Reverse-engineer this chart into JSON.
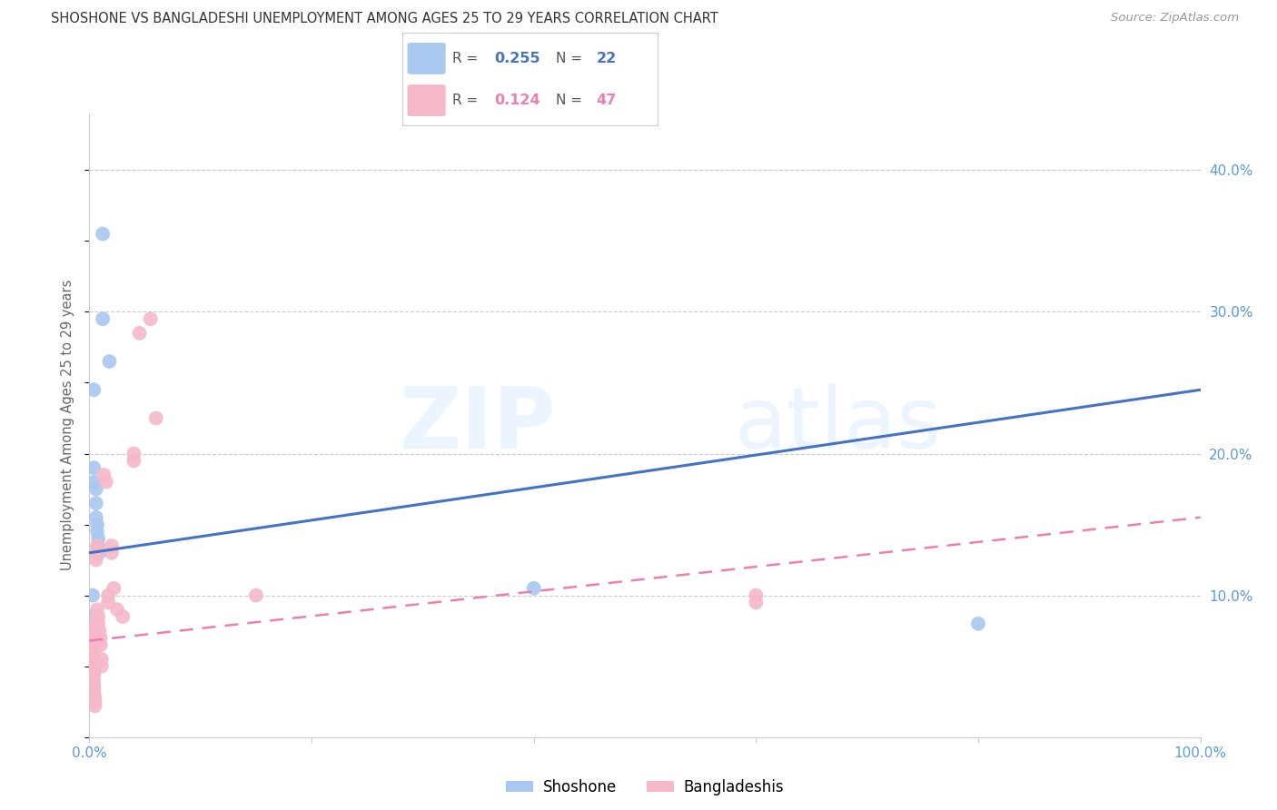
{
  "title": "SHOSHONE VS BANGLADESHI UNEMPLOYMENT AMONG AGES 25 TO 29 YEARS CORRELATION CHART",
  "source": "Source: ZipAtlas.com",
  "ylabel": "Unemployment Among Ages 25 to 29 years",
  "xlim": [
    0,
    1.0
  ],
  "ylim": [
    0,
    0.44
  ],
  "shoshone_color": "#a8c8f0",
  "bangladeshi_color": "#f5b8c8",
  "trendline_blue": "#4472c4",
  "trendline_pink": "#ed7eb0",
  "blue_trend_x": [
    0.0,
    1.0
  ],
  "blue_trend_y": [
    0.13,
    0.245
  ],
  "pink_trend_x": [
    0.0,
    1.0
  ],
  "pink_trend_y": [
    0.068,
    0.155
  ],
  "shoshone_x": [
    0.012,
    0.012,
    0.018,
    0.004,
    0.004,
    0.004,
    0.006,
    0.006,
    0.006,
    0.007,
    0.007,
    0.008,
    0.008,
    0.009,
    0.003,
    0.003,
    0.003,
    0.003,
    0.003,
    0.003,
    0.4,
    0.8
  ],
  "shoshone_y": [
    0.355,
    0.295,
    0.265,
    0.245,
    0.19,
    0.18,
    0.175,
    0.165,
    0.155,
    0.15,
    0.145,
    0.14,
    0.135,
    0.13,
    0.1,
    0.085,
    0.08,
    0.075,
    0.05,
    0.03,
    0.105,
    0.08
  ],
  "bangladeshi_x": [
    0.004,
    0.004,
    0.004,
    0.004,
    0.004,
    0.004,
    0.004,
    0.004,
    0.004,
    0.004,
    0.004,
    0.004,
    0.004,
    0.004,
    0.004,
    0.004,
    0.005,
    0.005,
    0.005,
    0.006,
    0.006,
    0.007,
    0.007,
    0.008,
    0.008,
    0.009,
    0.01,
    0.01,
    0.011,
    0.011,
    0.013,
    0.015,
    0.017,
    0.017,
    0.02,
    0.02,
    0.022,
    0.025,
    0.03,
    0.04,
    0.04,
    0.045,
    0.055,
    0.06,
    0.15,
    0.6,
    0.6
  ],
  "bangladeshi_y": [
    0.08,
    0.075,
    0.072,
    0.07,
    0.067,
    0.065,
    0.06,
    0.055,
    0.052,
    0.05,
    0.048,
    0.045,
    0.042,
    0.038,
    0.035,
    0.032,
    0.028,
    0.025,
    0.022,
    0.13,
    0.125,
    0.135,
    0.09,
    0.085,
    0.08,
    0.075,
    0.07,
    0.065,
    0.055,
    0.05,
    0.185,
    0.18,
    0.1,
    0.095,
    0.135,
    0.13,
    0.105,
    0.09,
    0.085,
    0.195,
    0.2,
    0.285,
    0.295,
    0.225,
    0.1,
    0.1,
    0.095
  ],
  "watermark_zip": "ZIP",
  "watermark_atlas": "atlas",
  "legend_r1": "0.255",
  "legend_n1": "22",
  "legend_r2": "0.124",
  "legend_n2": "47",
  "grid_color": "#cccccc",
  "tick_color": "#5b9bd5",
  "label_color": "#666666"
}
